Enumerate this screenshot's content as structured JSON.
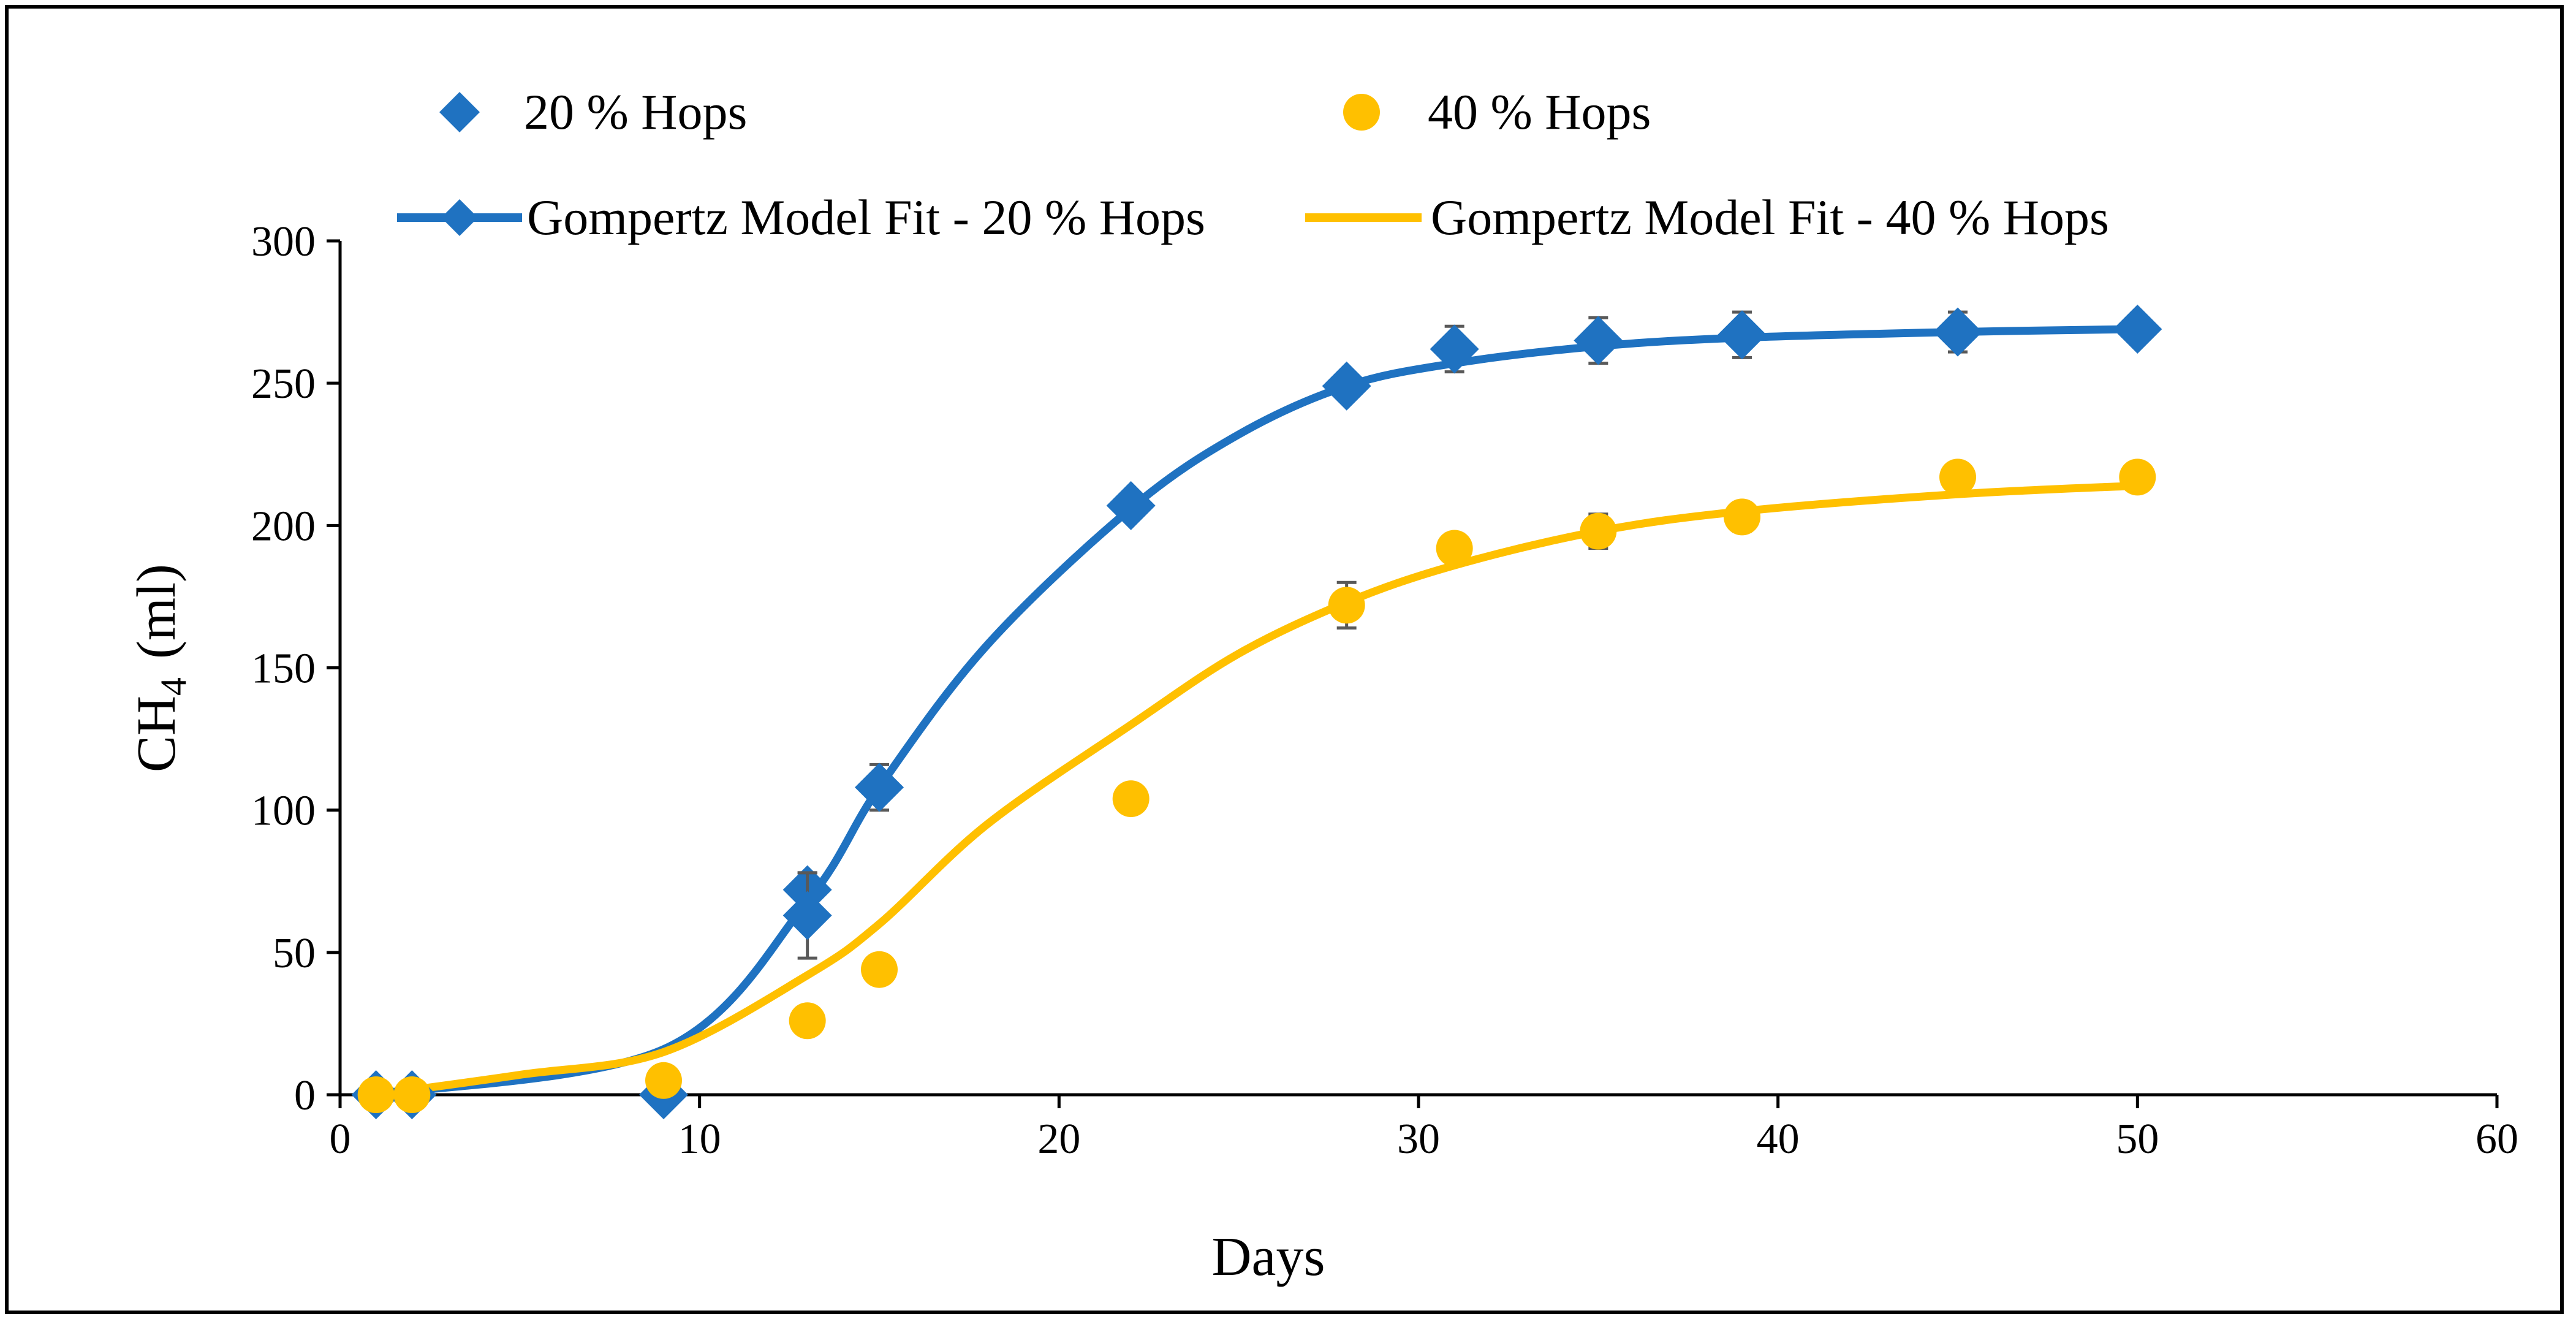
{
  "chart_data": {
    "type": "scatter",
    "title": "",
    "xlabel": "Days",
    "ylabel_main": "CH",
    "ylabel_sub": "4",
    "ylabel_unit": "(ml)",
    "xlim": [
      0,
      60
    ],
    "ylim": [
      0,
      300
    ],
    "x_ticks": [
      0,
      10,
      20,
      30,
      40,
      50,
      60
    ],
    "y_ticks": [
      0,
      50,
      100,
      150,
      200,
      250,
      300
    ],
    "grid": false,
    "legend_position": "top",
    "colors": {
      "blue": "#1f72c1",
      "gold": "#ffc000",
      "error_bar": "#595959",
      "axis": "#000000"
    },
    "series": [
      {
        "name": "20 % Hops",
        "kind": "points",
        "marker": "diamond",
        "color": "#1f72c1",
        "x": [
          1,
          2,
          9,
          13,
          13,
          15,
          22,
          28,
          31,
          35,
          39,
          45,
          50
        ],
        "y": [
          0,
          0,
          0,
          72,
          63,
          108,
          207,
          249,
          262,
          265,
          267,
          268,
          269
        ],
        "err": [
          0,
          0,
          0,
          6,
          15,
          8,
          4,
          4,
          8,
          8,
          8,
          7,
          3
        ]
      },
      {
        "name": "40 % Hops",
        "kind": "points",
        "marker": "circle",
        "color": "#ffc000",
        "x": [
          1,
          2,
          9,
          13,
          15,
          22,
          28,
          31,
          35,
          39,
          45,
          50
        ],
        "y": [
          0,
          0,
          5,
          26,
          44,
          104,
          172,
          192,
          198,
          203,
          217,
          217
        ],
        "err": [
          0,
          0,
          3,
          3,
          2,
          2,
          8,
          5,
          6,
          5,
          3,
          3
        ]
      },
      {
        "name": "Gompertz Model Fit - 20 % Hops",
        "kind": "line",
        "marker": "diamond",
        "color": "#1f72c1",
        "x": [
          1,
          9,
          13,
          15,
          18,
          22,
          25,
          28,
          31,
          35,
          39,
          45,
          50
        ],
        "y": [
          0,
          16,
          68,
          108,
          158,
          206,
          232,
          249,
          257,
          263,
          266,
          268,
          269
        ]
      },
      {
        "name": "Gompertz Model Fit - 40 % Hops",
        "kind": "line",
        "color": "#ffc000",
        "x": [
          1,
          5,
          9,
          13,
          15,
          18,
          22,
          25,
          28,
          31,
          35,
          39,
          45,
          50
        ],
        "y": [
          0,
          7,
          15,
          42,
          60,
          95,
          130,
          155,
          173,
          186,
          198,
          205,
          211,
          214
        ]
      }
    ]
  }
}
